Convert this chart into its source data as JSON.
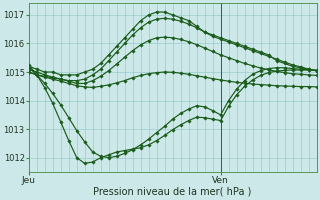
{
  "xlabel": "Pression niveau de la mer( hPa )",
  "bg_color": "#cce8e8",
  "grid_color": "#99cccc",
  "line_color": "#1a5c1a",
  "ylim": [
    1011.5,
    1017.4
  ],
  "yticks": [
    1012,
    1013,
    1014,
    1015,
    1016,
    1017
  ],
  "xlim": [
    0,
    36
  ],
  "xtick_positions": [
    0,
    24
  ],
  "xtick_labels": [
    "Jeu",
    "Ven"
  ],
  "vline_x": 24,
  "lines": [
    {
      "x": [
        0,
        1,
        2,
        3,
        4,
        5,
        6,
        7,
        8,
        9,
        10,
        11,
        12,
        13,
        14,
        15,
        16,
        17,
        18,
        19,
        20,
        21,
        22,
        23,
        24,
        25,
        26,
        27,
        28,
        29,
        30,
        31,
        32,
        33,
        34,
        35,
        36
      ],
      "y": [
        1015.2,
        1015.1,
        1015.0,
        1015.0,
        1014.9,
        1014.9,
        1014.9,
        1015.0,
        1015.1,
        1015.3,
        1015.6,
        1015.9,
        1016.2,
        1016.5,
        1016.8,
        1017.0,
        1017.1,
        1017.1,
        1017.0,
        1016.9,
        1016.8,
        1016.6,
        1016.4,
        1016.3,
        1016.2,
        1016.1,
        1016.0,
        1015.9,
        1015.8,
        1015.7,
        1015.6,
        1015.4,
        1015.3,
        1015.2,
        1015.15,
        1015.1,
        1015.05
      ]
    },
    {
      "x": [
        0,
        1,
        2,
        3,
        4,
        5,
        6,
        7,
        8,
        9,
        10,
        11,
        12,
        13,
        14,
        15,
        16,
        17,
        18,
        19,
        20,
        21,
        22,
        23,
        24,
        25,
        26,
        27,
        28,
        29,
        30,
        31,
        32,
        33,
        34,
        35,
        36
      ],
      "y": [
        1015.0,
        1014.9,
        1014.85,
        1014.8,
        1014.75,
        1014.7,
        1014.7,
        1014.75,
        1014.9,
        1015.1,
        1015.4,
        1015.7,
        1016.0,
        1016.3,
        1016.55,
        1016.75,
        1016.85,
        1016.88,
        1016.85,
        1016.78,
        1016.68,
        1016.55,
        1016.4,
        1016.25,
        1016.15,
        1016.05,
        1015.95,
        1015.85,
        1015.75,
        1015.65,
        1015.55,
        1015.45,
        1015.35,
        1015.25,
        1015.18,
        1015.1,
        1015.05
      ]
    },
    {
      "x": [
        0,
        1,
        2,
        3,
        4,
        5,
        6,
        7,
        8,
        9,
        10,
        11,
        12,
        13,
        14,
        15,
        16,
        17,
        18,
        19,
        20,
        21,
        22,
        23,
        24,
        25,
        26,
        27,
        28,
        29,
        30,
        31,
        32,
        33,
        34,
        35,
        36
      ],
      "y": [
        1015.1,
        1015.0,
        1014.9,
        1014.82,
        1014.75,
        1014.68,
        1014.6,
        1014.6,
        1014.7,
        1014.85,
        1015.05,
        1015.28,
        1015.52,
        1015.75,
        1015.95,
        1016.1,
        1016.2,
        1016.22,
        1016.2,
        1016.14,
        1016.06,
        1015.96,
        1015.84,
        1015.72,
        1015.6,
        1015.5,
        1015.4,
        1015.3,
        1015.22,
        1015.14,
        1015.08,
        1015.02,
        1014.98,
        1014.94,
        1014.92,
        1014.9,
        1014.88
      ]
    },
    {
      "x": [
        0,
        1,
        2,
        3,
        4,
        5,
        6,
        7,
        8,
        9,
        10,
        11,
        12,
        13,
        14,
        15,
        16,
        17,
        18,
        19,
        20,
        21,
        22,
        23,
        24,
        25,
        26,
        27,
        28,
        29,
        30,
        31,
        32,
        33,
        34,
        35,
        36
      ],
      "y": [
        1015.0,
        1014.9,
        1014.82,
        1014.75,
        1014.68,
        1014.6,
        1014.52,
        1014.48,
        1014.46,
        1014.5,
        1014.55,
        1014.62,
        1014.7,
        1014.8,
        1014.88,
        1014.94,
        1014.98,
        1015.0,
        1014.99,
        1014.96,
        1014.92,
        1014.87,
        1014.82,
        1014.77,
        1014.72,
        1014.68,
        1014.64,
        1014.61,
        1014.58,
        1014.56,
        1014.54,
        1014.52,
        1014.51,
        1014.5,
        1014.49,
        1014.49,
        1014.48
      ]
    },
    {
      "x": [
        0,
        1,
        2,
        3,
        4,
        5,
        6,
        7,
        8,
        9,
        10,
        11,
        12,
        13,
        14,
        15,
        16,
        17,
        18,
        19,
        20,
        21,
        22,
        23,
        24,
        25,
        26,
        27,
        28,
        29,
        30,
        31,
        32,
        33,
        34,
        35,
        36
      ],
      "y": [
        1015.15,
        1014.9,
        1014.6,
        1014.25,
        1013.85,
        1013.4,
        1012.95,
        1012.55,
        1012.2,
        1012.05,
        1012.0,
        1012.05,
        1012.15,
        1012.28,
        1012.45,
        1012.65,
        1012.88,
        1013.1,
        1013.35,
        1013.55,
        1013.7,
        1013.82,
        1013.78,
        1013.65,
        1013.5,
        1014.0,
        1014.4,
        1014.7,
        1014.92,
        1015.05,
        1015.12,
        1015.15,
        1015.15,
        1015.12,
        1015.1,
        1015.08,
        1015.05
      ]
    },
    {
      "x": [
        0,
        1,
        2,
        3,
        4,
        5,
        6,
        7,
        8,
        9,
        10,
        11,
        12,
        13,
        14,
        15,
        16,
        17,
        18,
        19,
        20,
        21,
        22,
        23,
        24,
        25,
        26,
        27,
        28,
        29,
        30,
        31,
        32,
        33,
        34,
        35,
        36
      ],
      "y": [
        1015.25,
        1014.9,
        1014.45,
        1013.9,
        1013.25,
        1012.6,
        1012.0,
        1011.8,
        1011.85,
        1012.0,
        1012.1,
        1012.2,
        1012.25,
        1012.3,
        1012.35,
        1012.45,
        1012.6,
        1012.78,
        1012.98,
        1013.15,
        1013.3,
        1013.42,
        1013.4,
        1013.35,
        1013.3,
        1013.8,
        1014.2,
        1014.5,
        1014.72,
        1014.88,
        1014.98,
        1015.03,
        1015.06,
        1015.07,
        1015.07,
        1015.07,
        1015.06
      ]
    }
  ]
}
